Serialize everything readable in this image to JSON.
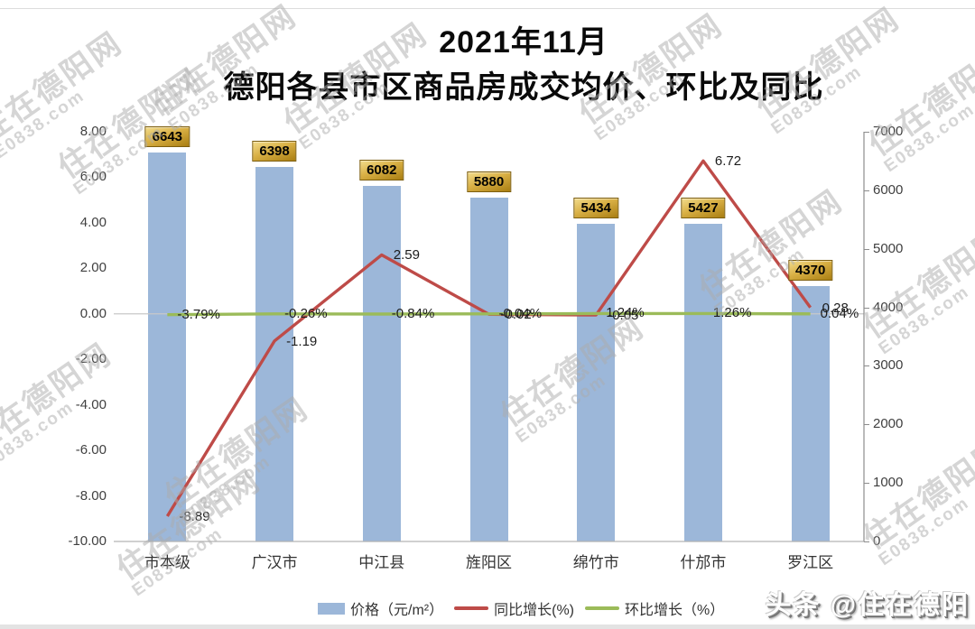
{
  "title": {
    "line1": "2021年11月",
    "line2": "德阳各县市区商品房成交均价、环比及同比"
  },
  "chart_data": {
    "type": "combo",
    "categories": [
      "市本级",
      "广汉市",
      "中江县",
      "旌阳区",
      "绵竹市",
      "什邡市",
      "罗江区"
    ],
    "series": [
      {
        "name": "价格（元/m²）",
        "type": "bar",
        "axis": "right",
        "color": "#9CB7D9",
        "values": [
          6643,
          6398,
          6082,
          5880,
          5434,
          5427,
          4370
        ],
        "labels": [
          "6643",
          "6398",
          "6082",
          "5880",
          "5434",
          "5427",
          "4370"
        ]
      },
      {
        "name": "同比增长(%)",
        "type": "line",
        "axis": "left",
        "color": "#BE4B48",
        "values": [
          -8.89,
          -1.19,
          2.59,
          -0.02,
          -0.05,
          6.72,
          0.28
        ],
        "labels": [
          "-8.89",
          "-1.19",
          "2.59",
          "-0.02",
          "-0.05",
          "6.72",
          "0.28"
        ]
      },
      {
        "name": "环比增长（%）",
        "type": "line",
        "axis": "left",
        "color": "#9BBB59",
        "plotted_scale": 0.01,
        "values": [
          -3.79,
          -0.26,
          -0.84,
          -0.04,
          1.24,
          1.26,
          0.04
        ],
        "labels": [
          "-3.79%",
          "-0.26%",
          "-0.84%",
          "-0.04%",
          "1.24%",
          "1.26%",
          "0.04%"
        ]
      }
    ],
    "left_axis": {
      "min": -10,
      "max": 8,
      "ticks": [
        "8.00",
        "6.00",
        "4.00",
        "2.00",
        "0.00",
        "-2.00",
        "-4.00",
        "-6.00",
        "-8.00",
        "-10.00"
      ]
    },
    "right_axis": {
      "min": 0,
      "max": 7000,
      "ticks": [
        "7000",
        "6000",
        "5000",
        "4000",
        "3000",
        "2000",
        "1000",
        "0"
      ]
    },
    "grid": "zero-line-only",
    "legend_position": "bottom"
  },
  "watermark": {
    "line1": "住在德阳网",
    "line2": "E0838.com"
  },
  "credit": "头条 @住在德阳",
  "colors": {
    "bar": "#9CB7D9",
    "line_yoy": "#BE4B48",
    "line_mom": "#9BBB59",
    "value_box_gold_light": "#F2DC8C",
    "value_box_gold_dark": "#A97E12",
    "watermark_gray": "#ACACAC",
    "zero_gridline": "#C9C9C9",
    "axis_line": "#8C8C8C"
  }
}
